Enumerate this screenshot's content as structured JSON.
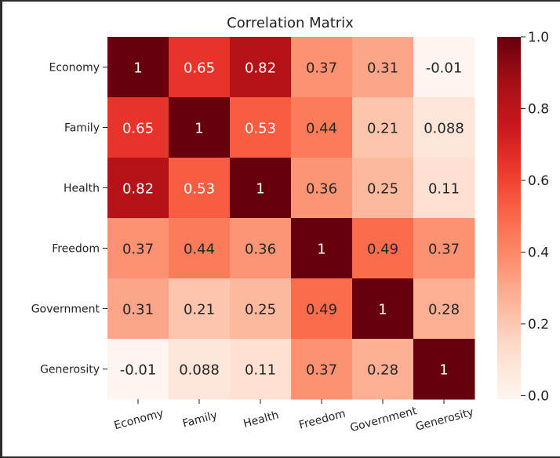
{
  "chart_data": {
    "type": "heatmap",
    "title": "Correlation Matrix",
    "x_categories": [
      "Economy",
      "Family",
      "Health",
      "Freedom",
      "Government",
      "Generosity"
    ],
    "y_categories": [
      "Economy",
      "Family",
      "Health",
      "Freedom",
      "Government",
      "Generosity"
    ],
    "matrix": [
      [
        1,
        0.65,
        0.82,
        0.37,
        0.31,
        -0.01
      ],
      [
        0.65,
        1,
        0.53,
        0.44,
        0.21,
        0.088
      ],
      [
        0.82,
        0.53,
        1,
        0.36,
        0.25,
        0.11
      ],
      [
        0.37,
        0.44,
        0.36,
        1,
        0.49,
        0.37
      ],
      [
        0.31,
        0.21,
        0.25,
        0.49,
        1,
        0.28
      ],
      [
        -0.01,
        0.088,
        0.11,
        0.37,
        0.28,
        1
      ]
    ],
    "cell_labels": [
      [
        "1",
        "0.65",
        "0.82",
        "0.37",
        "0.31",
        "-0.01"
      ],
      [
        "0.65",
        "1",
        "0.53",
        "0.44",
        "0.21",
        "0.088"
      ],
      [
        "0.82",
        "0.53",
        "1",
        "0.36",
        "0.25",
        "0.11"
      ],
      [
        "0.37",
        "0.44",
        "0.36",
        "1",
        "0.49",
        "0.37"
      ],
      [
        "0.31",
        "0.21",
        "0.25",
        "0.49",
        "1",
        "0.28"
      ],
      [
        "-0.01",
        "0.088",
        "0.11",
        "0.37",
        "0.28",
        "1"
      ]
    ],
    "colormap": "Reds",
    "colorbar": {
      "range": [
        -0.01,
        1.0
      ],
      "ticks": [
        0.0,
        0.2,
        0.4,
        0.6,
        0.8,
        1.0
      ],
      "tick_labels": [
        "0.0",
        "0.2",
        "0.4",
        "0.6",
        "0.8",
        "1.0"
      ]
    },
    "x_tick_rotation_deg": 15
  }
}
